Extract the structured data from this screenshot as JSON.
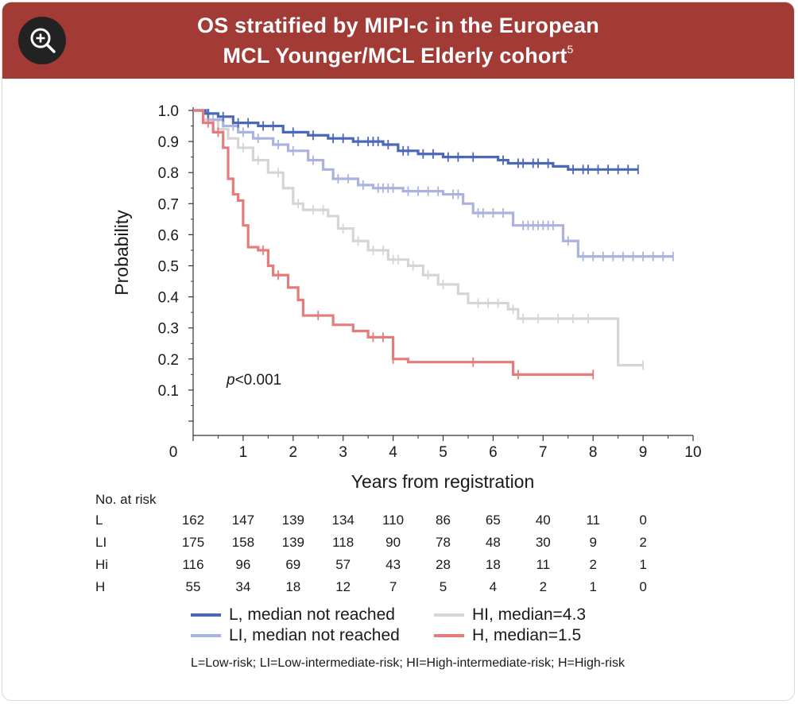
{
  "header": {
    "title_line1": "OS stratified by MIPI-c in the European",
    "title_line2": "MCL Younger/MCL Elderly cohort",
    "title_superscript": "5",
    "zoom_icon": "zoom-in-icon",
    "bg_color": "#a23b36"
  },
  "chart_data": {
    "type": "line",
    "subtype": "kaplan-meier",
    "xlabel": "Years from registration",
    "ylabel": "Probability",
    "xlim": [
      0,
      10
    ],
    "ylim": [
      0.0,
      1.0
    ],
    "x_ticks": [
      "0",
      "1",
      "2",
      "3",
      "4",
      "5",
      "6",
      "7",
      "8",
      "9",
      "10"
    ],
    "y_ticks": [
      "0.1",
      "0.2",
      "0.3",
      "0.4",
      "0.5",
      "0.6",
      "0.7",
      "0.8",
      "0.9",
      "1.0"
    ],
    "annotation": "p<0.001",
    "annotation_italic": "p",
    "annotation_rest": "<0.001",
    "series": [
      {
        "name": "L, median not reached",
        "key": "L",
        "color": "#4c67b8",
        "steps": [
          [
            0,
            1.0
          ],
          [
            0.25,
            0.99
          ],
          [
            0.5,
            0.98
          ],
          [
            0.8,
            0.96
          ],
          [
            1.3,
            0.95
          ],
          [
            1.8,
            0.93
          ],
          [
            2.3,
            0.92
          ],
          [
            2.7,
            0.91
          ],
          [
            3.2,
            0.9
          ],
          [
            3.8,
            0.89
          ],
          [
            4.1,
            0.87
          ],
          [
            4.5,
            0.86
          ],
          [
            5.0,
            0.85
          ],
          [
            5.8,
            0.85
          ],
          [
            6.1,
            0.84
          ],
          [
            6.3,
            0.83
          ],
          [
            7.2,
            0.82
          ],
          [
            7.5,
            0.81
          ],
          [
            8.9,
            0.81
          ]
        ],
        "censors": [
          0.3,
          0.6,
          0.9,
          1.1,
          1.4,
          1.6,
          2.0,
          2.4,
          2.8,
          3.0,
          3.3,
          3.5,
          3.6,
          3.7,
          3.9,
          4.2,
          4.3,
          4.6,
          4.8,
          5.1,
          5.3,
          5.6,
          6.2,
          6.5,
          6.6,
          6.8,
          6.9,
          7.1,
          7.6,
          7.8,
          7.9,
          8.1,
          8.3,
          8.5,
          8.7,
          8.9
        ]
      },
      {
        "name": "LI, median not reached",
        "key": "LI",
        "color": "#aab3df",
        "steps": [
          [
            0,
            1.0
          ],
          [
            0.3,
            0.97
          ],
          [
            0.6,
            0.95
          ],
          [
            0.9,
            0.93
          ],
          [
            1.2,
            0.91
          ],
          [
            1.6,
            0.89
          ],
          [
            1.9,
            0.87
          ],
          [
            2.3,
            0.84
          ],
          [
            2.6,
            0.81
          ],
          [
            2.8,
            0.78
          ],
          [
            3.3,
            0.76
          ],
          [
            3.6,
            0.75
          ],
          [
            4.2,
            0.74
          ],
          [
            5.0,
            0.73
          ],
          [
            5.4,
            0.7
          ],
          [
            5.6,
            0.67
          ],
          [
            6.4,
            0.63
          ],
          [
            7.4,
            0.58
          ],
          [
            7.7,
            0.53
          ],
          [
            9.6,
            0.53
          ]
        ],
        "censors": [
          0.4,
          0.8,
          1.0,
          1.3,
          1.7,
          2.0,
          2.4,
          2.9,
          3.1,
          3.4,
          3.7,
          3.8,
          3.9,
          4.0,
          4.3,
          4.5,
          4.7,
          4.9,
          5.2,
          5.3,
          5.7,
          5.8,
          6.0,
          6.2,
          6.6,
          6.7,
          6.8,
          6.9,
          7.0,
          7.1,
          7.2,
          7.5,
          7.8,
          8.0,
          8.2,
          8.4,
          8.6,
          8.8,
          9.0,
          9.2,
          9.4,
          9.6
        ]
      },
      {
        "name": "HI, median=4.3",
        "key": "HI",
        "color": "#d5d5d5",
        "steps": [
          [
            0,
            1.0
          ],
          [
            0.2,
            0.97
          ],
          [
            0.5,
            0.94
          ],
          [
            0.7,
            0.91
          ],
          [
            0.9,
            0.88
          ],
          [
            1.2,
            0.84
          ],
          [
            1.5,
            0.8
          ],
          [
            1.8,
            0.75
          ],
          [
            2.0,
            0.7
          ],
          [
            2.2,
            0.68
          ],
          [
            2.7,
            0.66
          ],
          [
            2.9,
            0.62
          ],
          [
            3.2,
            0.58
          ],
          [
            3.5,
            0.55
          ],
          [
            3.9,
            0.52
          ],
          [
            4.3,
            0.5
          ],
          [
            4.6,
            0.47
          ],
          [
            4.9,
            0.44
          ],
          [
            5.3,
            0.41
          ],
          [
            5.5,
            0.38
          ],
          [
            6.3,
            0.36
          ],
          [
            6.5,
            0.33
          ],
          [
            8.4,
            0.33
          ],
          [
            8.5,
            0.18
          ],
          [
            9.0,
            0.18
          ]
        ],
        "censors": [
          0.3,
          0.6,
          1.0,
          1.3,
          1.7,
          2.1,
          2.4,
          2.6,
          3.0,
          3.3,
          3.6,
          3.8,
          4.0,
          4.1,
          4.4,
          4.7,
          5.0,
          5.7,
          5.9,
          6.1,
          6.4,
          6.6,
          6.9,
          7.3,
          7.6,
          7.9,
          9.0
        ]
      },
      {
        "name": "H, median=1.5",
        "key": "H",
        "color": "#e57b7b",
        "steps": [
          [
            0,
            1.0
          ],
          [
            0.2,
            0.96
          ],
          [
            0.4,
            0.93
          ],
          [
            0.6,
            0.88
          ],
          [
            0.7,
            0.78
          ],
          [
            0.8,
            0.73
          ],
          [
            0.9,
            0.71
          ],
          [
            1.0,
            0.63
          ],
          [
            1.1,
            0.56
          ],
          [
            1.3,
            0.55
          ],
          [
            1.5,
            0.5
          ],
          [
            1.6,
            0.47
          ],
          [
            1.9,
            0.43
          ],
          [
            2.1,
            0.39
          ],
          [
            2.2,
            0.34
          ],
          [
            2.8,
            0.31
          ],
          [
            3.2,
            0.29
          ],
          [
            3.5,
            0.27
          ],
          [
            4.0,
            0.2
          ],
          [
            4.3,
            0.19
          ],
          [
            6.4,
            0.15
          ],
          [
            8.0,
            0.15
          ]
        ],
        "censors": [
          0.3,
          0.5,
          1.4,
          1.7,
          2.5,
          3.6,
          3.8,
          4.0,
          5.6,
          6.5,
          8.0
        ]
      }
    ]
  },
  "risk_table": {
    "title": "No. at risk",
    "rows": [
      {
        "label": "L",
        "values": [
          "162",
          "147",
          "139",
          "134",
          "110",
          "86",
          "65",
          "40",
          "11",
          "0"
        ]
      },
      {
        "label": "LI",
        "values": [
          "175",
          "158",
          "139",
          "118",
          "90",
          "78",
          "48",
          "30",
          "9",
          "2"
        ]
      },
      {
        "label": "Hi",
        "values": [
          "116",
          "96",
          "69",
          "57",
          "43",
          "28",
          "18",
          "11",
          "2",
          "1"
        ]
      },
      {
        "label": "H",
        "values": [
          "55",
          "34",
          "18",
          "12",
          "7",
          "5",
          "4",
          "2",
          "1",
          "0"
        ]
      }
    ]
  },
  "legend": [
    {
      "label": "L, median not reached",
      "color": "#4c67b8"
    },
    {
      "label": "LI, median not reached",
      "color": "#aab3df"
    },
    {
      "label": "HI, median=4.3",
      "color": "#d5d5d5"
    },
    {
      "label": "H, median=1.5",
      "color": "#e57b7b"
    }
  ],
  "footnote": "L=Low-risk; LI=Low-intermediate-risk; HI=High-intermediate-risk; H=High-risk"
}
